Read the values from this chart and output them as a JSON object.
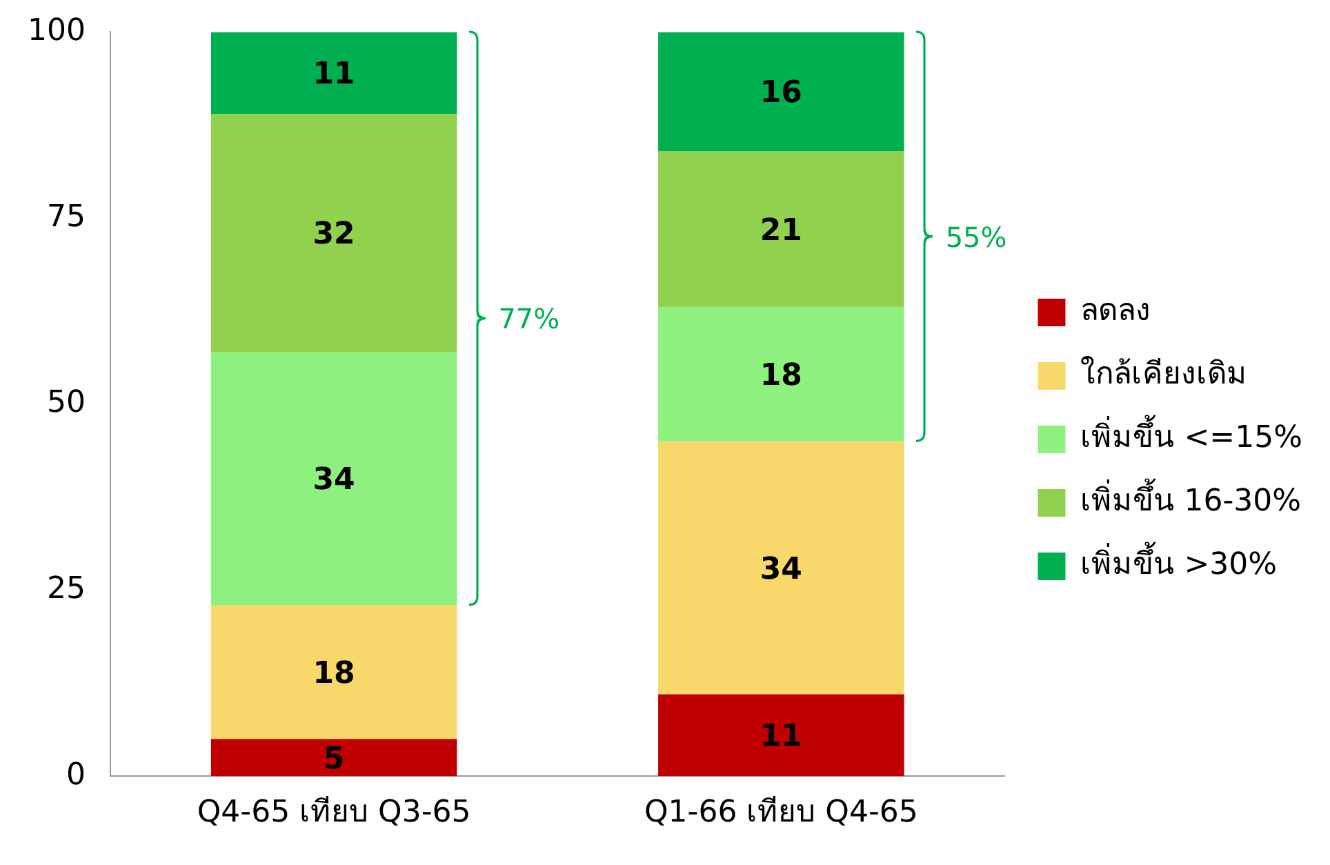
{
  "chart_data": {
    "type": "bar",
    "stacked": true,
    "categories": [
      "Q4-65 เทียบ Q3-65",
      "Q1-66 เทียบ Q4-65"
    ],
    "series": [
      {
        "name": "ลดลง",
        "color": "#c00000",
        "values": [
          5,
          11
        ]
      },
      {
        "name": "ใกล้เคียงเดิม",
        "color": "#f9d86b",
        "values": [
          18,
          34
        ]
      },
      {
        "name": "เพิ่มขึ้น <=15%",
        "color": "#8ef07f",
        "values": [
          34,
          18
        ]
      },
      {
        "name": "เพิ่มขึ้น 16-30%",
        "color": "#92d050",
        "values": [
          32,
          21
        ]
      },
      {
        "name": "เพิ่มขึ้น >30%",
        "color": "#00b050",
        "values": [
          11,
          16
        ]
      }
    ],
    "ylim": [
      0,
      100
    ],
    "yticks": [
      0,
      25,
      50,
      75,
      100
    ],
    "grid": false,
    "legend": "right",
    "data_labels": true,
    "annotations": [
      "77%",
      "55%"
    ]
  }
}
